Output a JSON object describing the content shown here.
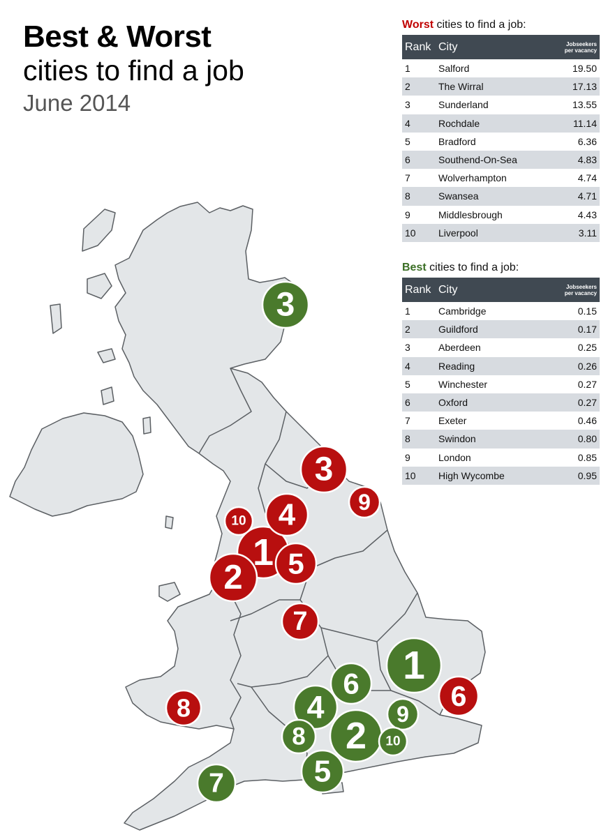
{
  "title": {
    "line1": "Best & Worst",
    "line2": "cities to find a job",
    "date": "June 2014"
  },
  "worst_table": {
    "heading_highlight": "Worst",
    "heading_rest": " cities to find a job:",
    "columns": {
      "rank": "Rank",
      "city": "City",
      "metric_line1": "Jobseekers",
      "metric_line2": "per vacancy"
    },
    "rows": [
      {
        "rank": "1",
        "city": "Salford",
        "value": "19.50"
      },
      {
        "rank": "2",
        "city": "The Wirral",
        "value": "17.13"
      },
      {
        "rank": "3",
        "city": "Sunderland",
        "value": "13.55"
      },
      {
        "rank": "4",
        "city": "Rochdale",
        "value": "11.14"
      },
      {
        "rank": "5",
        "city": "Bradford",
        "value": "6.36"
      },
      {
        "rank": "6",
        "city": "Southend-On-Sea",
        "value": "4.83"
      },
      {
        "rank": "7",
        "city": "Wolverhampton",
        "value": "4.74"
      },
      {
        "rank": "8",
        "city": "Swansea",
        "value": "4.71"
      },
      {
        "rank": "9",
        "city": "Middlesbrough",
        "value": "4.43"
      },
      {
        "rank": "10",
        "city": "Liverpool",
        "value": "3.11"
      }
    ]
  },
  "best_table": {
    "heading_highlight": "Best",
    "heading_rest": " cities to find a job:",
    "columns": {
      "rank": "Rank",
      "city": "City",
      "metric_line1": "Jobseekers",
      "metric_line2": "per vacancy"
    },
    "rows": [
      {
        "rank": "1",
        "city": "Cambridge",
        "value": "0.15"
      },
      {
        "rank": "2",
        "city": "Guildford",
        "value": "0.17"
      },
      {
        "rank": "3",
        "city": "Aberdeen",
        "value": "0.25"
      },
      {
        "rank": "4",
        "city": "Reading",
        "value": "0.26"
      },
      {
        "rank": "5",
        "city": "Winchester",
        "value": "0.27"
      },
      {
        "rank": "6",
        "city": "Oxford",
        "value": "0.27"
      },
      {
        "rank": "7",
        "city": "Exeter",
        "value": "0.46"
      },
      {
        "rank": "8",
        "city": "Swindon",
        "value": "0.80"
      },
      {
        "rank": "9",
        "city": "London",
        "value": "0.85"
      },
      {
        "rank": "10",
        "city": "High Wycombe",
        "value": "0.95"
      }
    ]
  },
  "colors": {
    "worst": "#b80f0f",
    "best": "#4a7a2c",
    "land": "#e3e6e8",
    "border": "#5b5f63",
    "header": "#404952"
  },
  "map_markers": {
    "worst": [
      "1",
      "2",
      "3",
      "4",
      "5",
      "6",
      "7",
      "8",
      "9",
      "10"
    ],
    "best": [
      "1",
      "2",
      "3",
      "4",
      "5",
      "6",
      "7",
      "8",
      "9",
      "10"
    ]
  }
}
